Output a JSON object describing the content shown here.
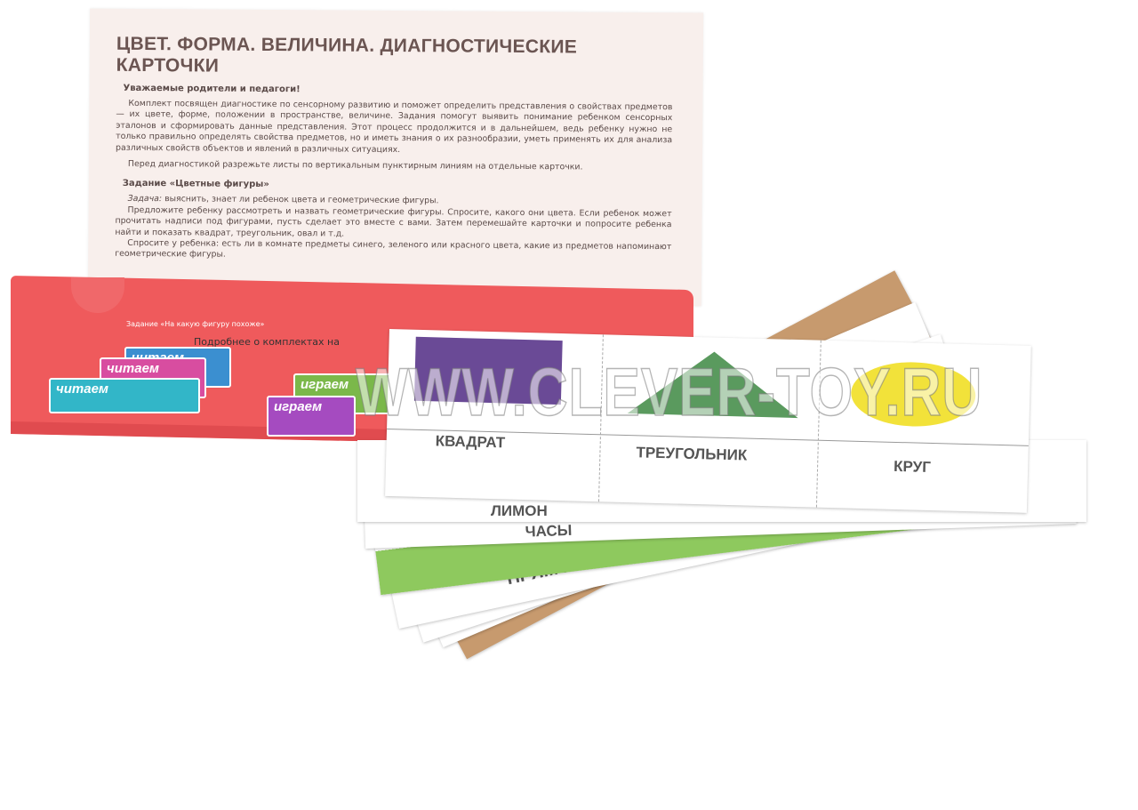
{
  "sheet": {
    "title": "ЦВЕТ. ФОРМА. ВЕЛИЧИНА. ДИАГНОСТИЧЕСКИЕ КАРТОЧКИ",
    "greeting": "Уважаемые родители и педагоги!",
    "intro": "Комплект посвящен диагностике по сенсорному развитию и поможет определить представления о свойствах предметов — их цвете, форме, положении в пространстве, величине. Задания помогут выявить понимание ребенком сенсорных эталонов и сформировать данные представления. Этот процесс продолжится и в дальнейшем, ведь ребенку нужно не только правильно определять свойства предметов, но и иметь знания о их разнообразии, уметь применять их для анализа различных свойств объектов и явлений в различных ситуациях.",
    "cut_note": "Перед диагностикой разрежьте листы по вертикальным пунктирным линиям на отдельные карточки.",
    "task_title": "Задание «Цветные фигуры»",
    "task_label": "Задача:",
    "task_goal": "выяснить, знает ли ребенок цвета и геометрические фигуры.",
    "task_p1": "Предложите ребенку рассмотреть и назвать геометрические фигуры. Спросите, какого они цвета. Если ребенок может прочитать надписи под фигурами, пусть сделает это вместе с вами. Затем перемешайте карточки и попросите ребенка найти и показать квадрат, треугольник, овал и т.д.",
    "task_p2": "Спросите у ребенка: есть ли в комнате предметы синего, зеленого или красного цвета, какие из предметов напоминают геометрические фигуры."
  },
  "envelope": {
    "task": "Задание «На какую фигуру похоже»",
    "more": "Подробнее о комплектах на",
    "books": [
      "читаем",
      "читаем",
      "читаем",
      "играем",
      "играем"
    ],
    "color": "#ef5a5c"
  },
  "cards": {
    "top": [
      {
        "label": "КВАДРАТ",
        "shape": "square",
        "color": "#6a4a96"
      },
      {
        "label": "ТРЕУГОЛЬНИК",
        "shape": "triangle",
        "color": "#5a9a5e"
      },
      {
        "label": "КРУГ",
        "shape": "oval",
        "color": "#f2e23a"
      }
    ],
    "lower_labels": [
      "ЛИМОН",
      "ЧАСЫ",
      "ПРЯМОУГОЛЬНИК"
    ]
  },
  "watermark": "WWW.CLEVER-TOY.RU"
}
